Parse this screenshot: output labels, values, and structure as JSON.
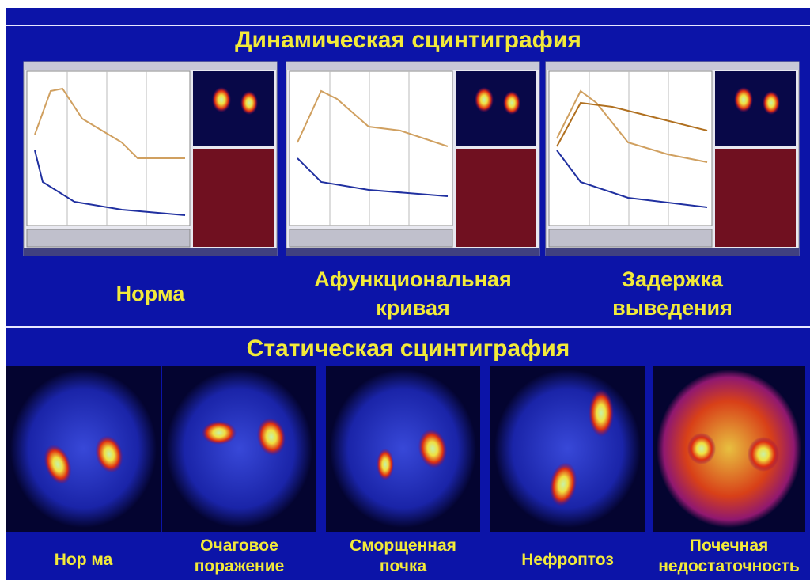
{
  "dynamic": {
    "title": "Динамическая сцинтиграфия",
    "panels": [
      {
        "label_lines": [
          "Норма"
        ]
      },
      {
        "label_lines": [
          "Афункциональная",
          "кривая"
        ]
      },
      {
        "label_lines": [
          "Задержка",
          "выведения"
        ]
      }
    ]
  },
  "static": {
    "title": "Статическая сцинтиграфия",
    "images": [
      {
        "label_lines": [
          "Нор ма"
        ]
      },
      {
        "label_lines": [
          "Очаговое",
          "поражение"
        ]
      },
      {
        "label_lines": [
          "Сморщенная",
          "почка"
        ]
      },
      {
        "label_lines": [
          "Нефроптоз"
        ]
      },
      {
        "label_lines": [
          "Почечная",
          "недостаточность"
        ]
      }
    ]
  }
}
